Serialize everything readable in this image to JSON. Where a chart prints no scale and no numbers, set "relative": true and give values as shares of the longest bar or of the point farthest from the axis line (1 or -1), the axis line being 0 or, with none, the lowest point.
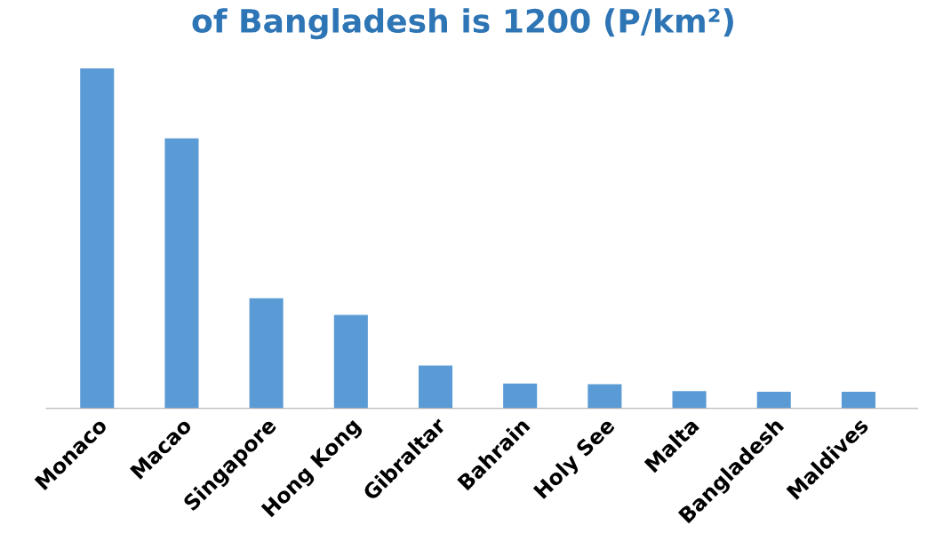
{
  "chart_data": {
    "type": "bar",
    "title": "of Bangladesh is 1200 (P/km²)",
    "relative": true,
    "color": "#5b9bd5",
    "categories": [
      "Monaco",
      "Macao",
      "Singapore",
      "Hong Kong",
      "Gibraltar",
      "Bahrain",
      "Holy See",
      "Malta",
      "Bangladesh",
      "Maldives"
    ],
    "values": [
      1,
      0.794,
      0.324,
      0.275,
      0.126,
      0.073,
      0.071,
      0.051,
      0.049,
      0.049
    ],
    "grid": false,
    "legend": false
  }
}
